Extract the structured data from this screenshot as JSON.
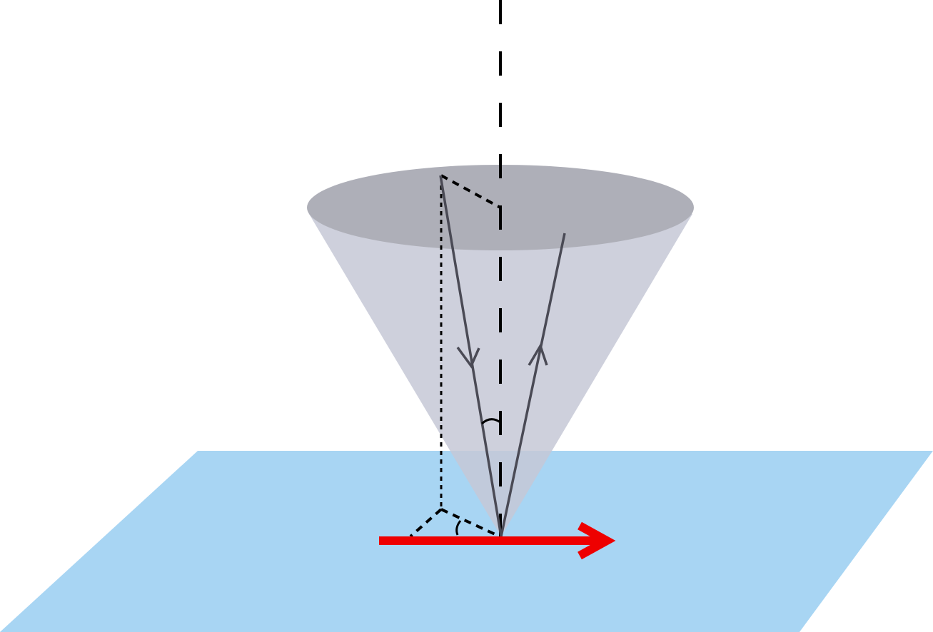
{
  "diagram": {
    "colors": {
      "background": "#ffffff",
      "plane": "#a8d5f3",
      "cone_body": "#cbcdda",
      "cone_top": "#b0b1ba",
      "ray": "#4a4a55",
      "axis": "#000000",
      "construction": "#000000",
      "direction_arrow": "#ee0000"
    },
    "elements": [
      "surface-plane",
      "cone",
      "vertical-axis",
      "incident-ray",
      "reflected-ray",
      "projection-lines",
      "angle-arcs",
      "direction-arrow"
    ]
  }
}
